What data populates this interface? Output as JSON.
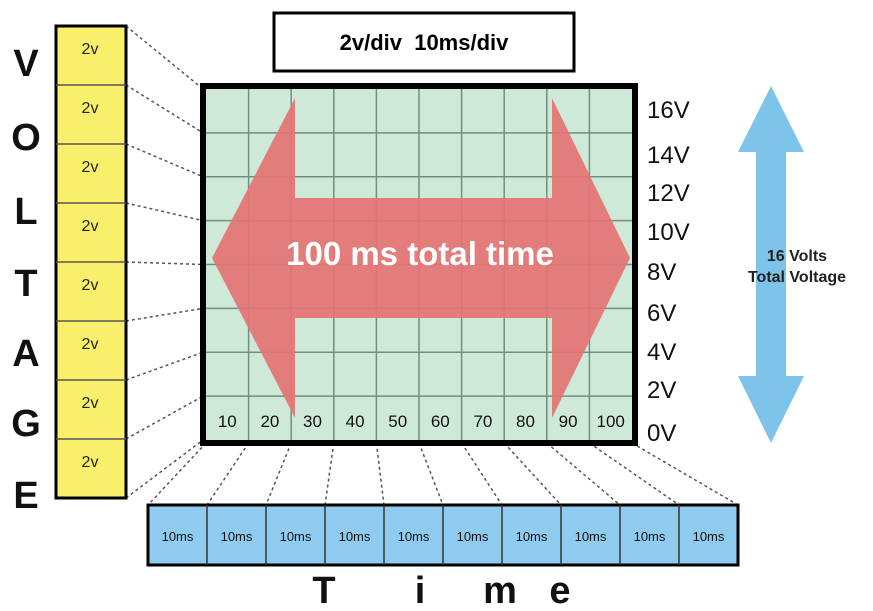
{
  "header": {
    "label": "2v/div  10ms/div"
  },
  "voltage_word": [
    "V",
    "O",
    "L",
    "T",
    "A",
    "G",
    "E"
  ],
  "voltage_cells": [
    "2v",
    "2v",
    "2v",
    "2v",
    "2v",
    "2v",
    "2v",
    "2v"
  ],
  "y_ticks": [
    "16V",
    "14V",
    "12V",
    "10V",
    "8V",
    "6V",
    "4V",
    "2V",
    "0V"
  ],
  "x_ticks": [
    "10",
    "20",
    "30",
    "40",
    "50",
    "60",
    "70",
    "80",
    "90",
    "100"
  ],
  "time_cells": [
    "10ms",
    "10ms",
    "10ms",
    "10ms",
    "10ms",
    "10ms",
    "10ms",
    "10ms",
    "10ms",
    "10ms"
  ],
  "time_word": [
    "T",
    "i",
    "m",
    "e"
  ],
  "arrow_text": "100 ms total time",
  "voltage_arrow": {
    "line1": "16 Volts",
    "line2": "Total Voltage"
  },
  "colors": {
    "yellow": "#f8f06a",
    "grid_bg": "#cfe9d8",
    "grid_line": "#6f8f7f",
    "red_arrow": "#e57373",
    "blue_arrow": "#7ec3ea",
    "time_cell": "#8ecbee"
  }
}
